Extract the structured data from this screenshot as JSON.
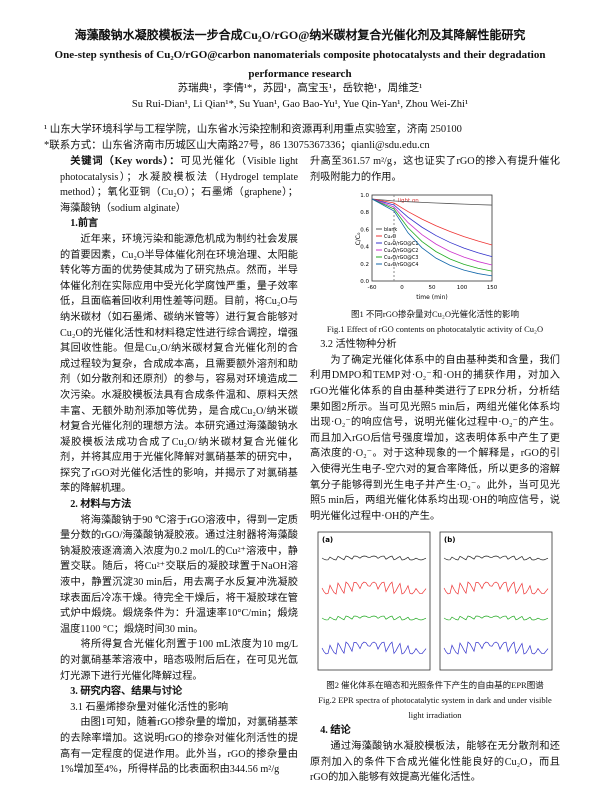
{
  "header": {
    "title_cn": "海藻酸钠水凝胶模板法一步合成Cu₂O/rGO@纳米碳材复合光催化剂及其降解性能研究",
    "title_en": "One-step synthesis of Cu₂O/rGO@carbon nanomaterials composite photocatalysts and their degradation performance research",
    "authors_cn": "苏瑞典¹，李倩¹*，苏园¹，高宝玉¹，岳钦艳¹，周维芝¹",
    "authors_en": "Su Rui-Dian¹, Li Qian¹*, Su Yuan¹, Gao Bao-Yu¹, Yue Qin-Yan¹, Zhou Wei-Zhi¹",
    "affiliation": "¹ 山东大学环境科学与工程学院，山东省水污染控制和资源再利用重点实验室，济南 250100",
    "contact": "*联系方式：山东省济南市历城区山大南路27号，86 13075367336；qianli@sdu.edu.cn"
  },
  "left": {
    "keywords_label": "关键词（Key words）：",
    "keywords": "可见光催化（Visible light photocatalysis）；水凝胶模板法（Hydrogel template method）；氧化亚铜（Cu₂O）；石墨烯（graphene）；海藻酸钠（sodium alginate）",
    "h1": "1.前言",
    "p1": "近年来，环境污染和能源危机成为制约社会发展的首要因素，Cu₂O半导体催化剂在环境治理、太阳能转化等方面的优势使其成为了研究热点。然而，半导体催化剂在实际应用中受光化学腐蚀严重，量子效率低，且面临着回收利用性差等问题。目前，将Cu₂O与纳米碳材（如石墨烯、碳纳米管等）进行复合能够对Cu₂O的光催化活性和材料稳定性进行综合调控，增强其回收性能。但是Cu₂O/纳米碳材复合光催化剂的合成过程较为复杂，合成成本高，且需要额外溶剂和助剂（如分散剂和还原剂）的参与，容易对环境造成二次污染。水凝胶模板法具有合成条件温和、原料天然丰富、无额外助剂添加等优势，是合成Cu₂O/纳米碳材复合光催化剂的理想方法。本研究通过海藻酸钠水凝胶模板法成功合成了Cu₂O/纳米碳材复合光催化剂，并将其应用于光催化降解对氯硝基苯的研究中，探究了rGO对光催化活性的影响，并揭示了对氯硝基苯的降解机理。",
    "h2": "2. 材料与方法",
    "p2": "将海藻酸钠于90 ℃溶于rGO溶液中，得到一定质量分数的rGO/海藻酸钠凝胶液。通过注射器将海藻酸钠凝胶液逐滴滴入浓度为0.2 mol/L的Cu²⁺溶液中，静置交联。随后，将Cu²⁺交联后的凝胶球置于NaOH溶液中，静置沉淀30 min后，用去离子水反复冲洗凝胶球表面后冷冻干燥。待完全干燥后，将干凝胶球在管式炉中煅烧。煅烧条件为：升温速率10°C/min；煅烧温度1100 °C；煅烧时间30 min。",
    "p3": "将所得复合光催化剂置于100 mL浓度为10 mg/L的对氯硝基苯溶液中，暗态吸附后后在，在可见光氙灯光源下进行光催化降解过程。",
    "h3": "3. 研究内容、结果与讨论",
    "s31": "3.1 石墨烯掺杂量对催化活性的影响",
    "p4": "由图1可知，随着rGO掺杂量的增加，对氯硝基苯的去除率增加。这说明rGO的掺杂对催化剂活性的提高有一定程度的促进作用。此外当，rGO的掺杂量由1%增加至4%，所得样品的比表面积由344.56 m²/g"
  },
  "right": {
    "p1": "升高至361.57 m²/g，这也证实了rGO的掺入有提升催化剂吸附能力的作用。",
    "fig1_cap_cn": "图1 不同rGO掺杂量对Cu₂O光催化活性的影响",
    "fig1_cap_en": "Fig.1 Effect of rGO contents on photocatalytic activity of Cu₂O",
    "s32": "3.2 活性物种分析",
    "p2": "为了确定光催化体系中的自由基种类和含量，我们利用DMPO和TEMP对·O₂⁻和·OH的捕获作用，对加入rGO光催化体系的自由基种类进行了EPR分析，分析结果如图2所示。当可见光照5 min后，两组光催化体系均出现·O₂⁻的响应信号，说明光催化过程中·O₂⁻的产生。而且加入rGO后信号强度增加，这表明体系中产生了更高浓度的·O₂⁻。对于这种现象的一个解释是，rGO的引入使得光生电子-空穴对的复合率降低，所以更多的溶解氧分子能够得到光生电子并产生·O₂⁻。此外，当可见光照5 min后，两组光催化体系均出现·OH的响应信号，说明光催化过程中·OH的产生。",
    "fig2_cap_cn": "图2 催化体系在暗态和光照条件下产生的自由基的EPR图谱",
    "fig2_cap_en": "Fig.2 EPR spectra of photocatalytic system in dark and under visible light irradiation",
    "h4": "4. 结论",
    "p3": "通过海藻酸钠水凝胶模板法，能够在无分散剂和还原剂加入的条件下合成光催化性能良好的Cu₂O，而且rGO的加入能够有效提高光催化活性。"
  },
  "figures": {
    "fig1": {
      "ylabel": "C/C₀",
      "xlabel": "time (min)",
      "xticks": [
        "-60",
        "0",
        "50",
        "100",
        "150"
      ],
      "yticks": [
        "1.0",
        "0.8",
        "0.6",
        "0.4",
        "0.2",
        "0.0"
      ],
      "light": "light on",
      "legend": [
        "blank",
        "Cu₂O",
        "Cu₂O/rGO@C1",
        "Cu₂O/rGO@C2",
        "Cu₂O/rGO@C3",
        "Cu₂O/rGO@C4"
      ]
    },
    "fig2": {
      "panels": [
        "(a)",
        "(b)"
      ]
    }
  }
}
